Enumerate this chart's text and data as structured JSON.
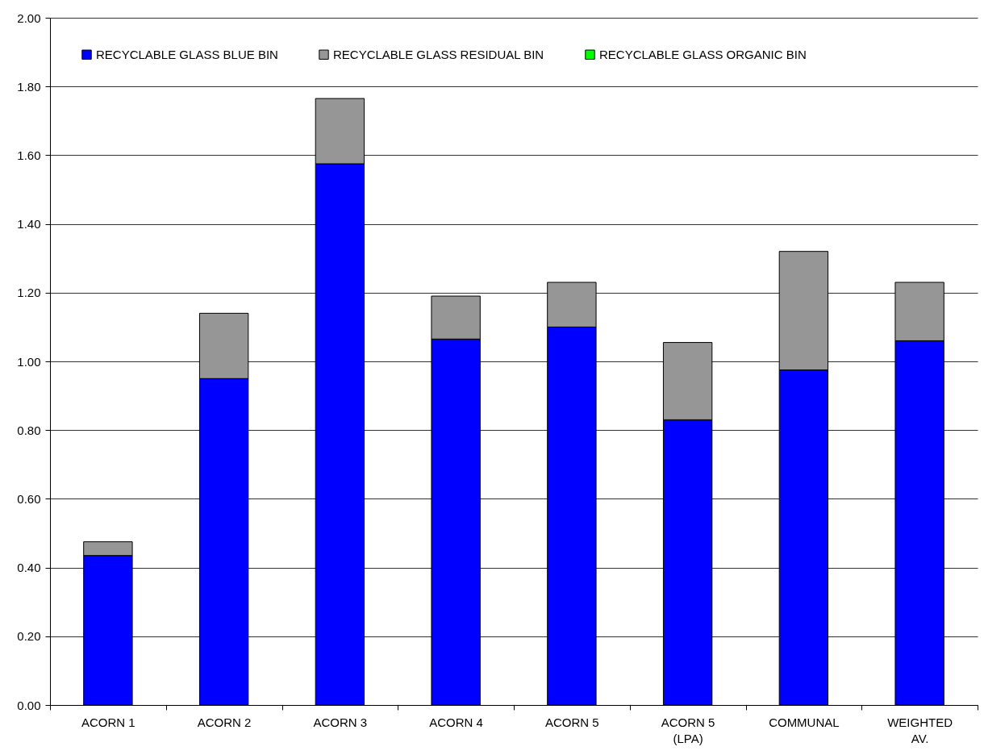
{
  "chart_data": {
    "type": "bar",
    "stacked": true,
    "categories": [
      "ACORN 1",
      "ACORN 2",
      "ACORN 3",
      "ACORN 4",
      "ACORN 5",
      "ACORN 5 (LPA)",
      "COMMUNAL",
      "WEIGHTED AV."
    ],
    "series": [
      {
        "name": "RECYCLABLE GLASS BLUE BIN",
        "color": "#0000ff",
        "values": [
          0.435,
          0.95,
          1.575,
          1.065,
          1.1,
          0.83,
          0.975,
          1.06
        ]
      },
      {
        "name": "RECYCLABLE GLASS RESIDUAL BIN",
        "color": "#969696",
        "values": [
          0.04,
          0.19,
          0.19,
          0.125,
          0.13,
          0.225,
          0.345,
          0.17
        ]
      },
      {
        "name": "RECYCLABLE GLASS ORGANIC BIN",
        "color": "#00ff00",
        "values": [
          null,
          null,
          null,
          null,
          null,
          null,
          null,
          null
        ]
      }
    ],
    "ylim": [
      0,
      2
    ],
    "yticks": [
      {
        "value": 0,
        "label": "0.00"
      },
      {
        "value": 0.2,
        "label": "0.20"
      },
      {
        "value": 0.4,
        "label": "0.40"
      },
      {
        "value": 0.6,
        "label": "0.60"
      },
      {
        "value": 0.8,
        "label": "0.80"
      },
      {
        "value": 1,
        "label": "1.00"
      },
      {
        "value": 1.2,
        "label": "1.20"
      },
      {
        "value": 1.4,
        "label": "1.40"
      },
      {
        "value": 1.6,
        "label": "1.60"
      },
      {
        "value": 1.8,
        "label": "1.80"
      },
      {
        "value": 2,
        "label": "2.00"
      }
    ],
    "grid": "y",
    "legend": "top"
  }
}
